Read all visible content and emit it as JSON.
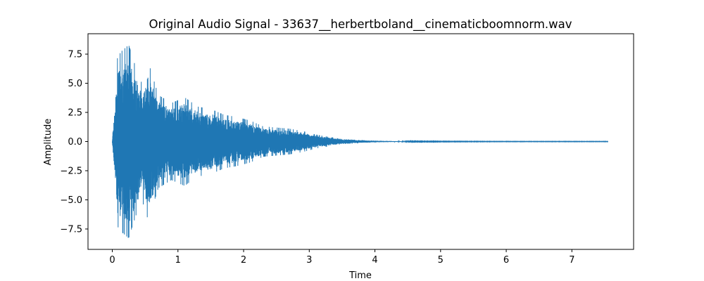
{
  "chart_data": {
    "type": "line",
    "title": "Original Audio Signal - 33637__herbertboland__cinematicboomnorm.wav",
    "xlabel": "Time",
    "ylabel": "Amplitude",
    "xlim": [
      -0.37,
      7.94
    ],
    "ylim": [
      -9.25,
      9.25
    ],
    "x_ticks": [
      0,
      1,
      2,
      3,
      4,
      5,
      6,
      7
    ],
    "x_tick_labels": [
      "0",
      "1",
      "2",
      "3",
      "4",
      "5",
      "6",
      "7"
    ],
    "y_ticks": [
      -7.5,
      -5.0,
      -2.5,
      0.0,
      2.5,
      5.0,
      7.5
    ],
    "y_tick_labels": [
      "−7.5",
      "−5.0",
      "−2.5",
      "0.0",
      "2.5",
      "5.0",
      "7.5"
    ],
    "grid": false,
    "series_color": "#1f77b4",
    "series": [
      {
        "duration": 7.55,
        "envelope": {
          "time": [
            0,
            0.04,
            0.08,
            0.15,
            0.25,
            0.35,
            0.45,
            0.55,
            0.7,
            0.9,
            1.1,
            1.3,
            1.5,
            1.7,
            1.9,
            2.1,
            2.3,
            2.5,
            2.7,
            2.9,
            3.1,
            3.3,
            3.5,
            3.8,
            4.0,
            4.2,
            4.4,
            4.6,
            5.0,
            6.0,
            7.55
          ],
          "amplitude": [
            0.05,
            3.5,
            7.3,
            7.8,
            8.3,
            6.5,
            5.0,
            6.8,
            4.0,
            3.3,
            3.8,
            3.0,
            2.8,
            2.3,
            2.1,
            1.8,
            1.3,
            1.2,
            1.1,
            0.9,
            0.6,
            0.4,
            0.22,
            0.12,
            0.08,
            0.05,
            0.03,
            0.02,
            0.015,
            0.01,
            0.01
          ]
        }
      }
    ]
  }
}
